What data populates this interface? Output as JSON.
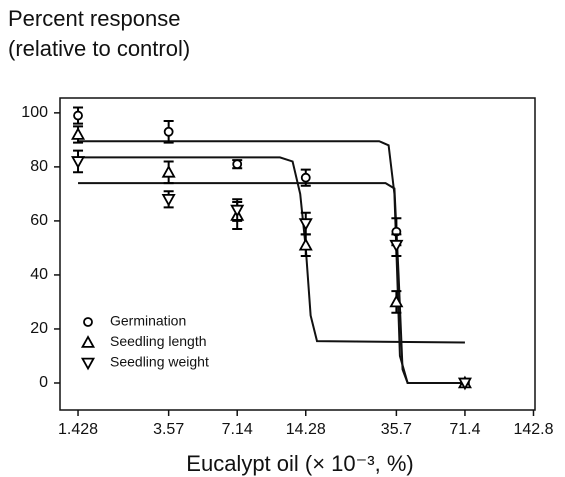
{
  "chart_data": {
    "type": "scatter",
    "ylabel": [
      "Percent response",
      "(relative to control)"
    ],
    "xlabel": "Eucalypt oil (× 10⁻³, %)",
    "xscale": "log",
    "x": [
      1.428,
      3.57,
      7.14,
      14.28,
      35.7,
      71.4
    ],
    "series": [
      {
        "name": "Germination",
        "marker": "circle",
        "color": "#000000",
        "values": [
          99,
          93,
          81,
          76,
          56,
          0
        ],
        "errors": [
          3,
          4,
          1.5,
          3,
          5,
          0
        ]
      },
      {
        "name": "Seedling length",
        "marker": "triangle-up",
        "color": "#000000",
        "values": [
          92,
          78,
          62,
          51,
          30,
          0
        ],
        "errors": [
          3,
          4,
          5,
          4,
          4,
          0
        ]
      },
      {
        "name": "Seedling weight",
        "marker": "triangle-down",
        "color": "#000000",
        "values": [
          82,
          68,
          64,
          59,
          51,
          0
        ],
        "errors": [
          4,
          3,
          4,
          4,
          4,
          0
        ]
      }
    ],
    "fit_lines": [
      {
        "x": [
          1.428,
          30,
          33,
          35,
          36,
          37,
          40,
          71.4
        ],
        "y": [
          89.5,
          89.5,
          88,
          70,
          40,
          10,
          0,
          0
        ]
      },
      {
        "x": [
          1.428,
          11,
          12.5,
          13.5,
          14.28,
          15,
          16,
          71.4
        ],
        "y": [
          83.5,
          83.5,
          82,
          70,
          50,
          25,
          15.5,
          15
        ]
      },
      {
        "x": [
          1.428,
          32,
          35,
          36.5,
          38,
          40,
          71.4
        ],
        "y": [
          74,
          74,
          72,
          40,
          5,
          0,
          0
        ]
      }
    ],
    "xlim": [
      1.19,
      145
    ],
    "xticks": [
      1.428,
      3.57,
      7.14,
      14.28,
      35.7,
      71.4,
      142.8
    ],
    "ylim": [
      -10,
      105.5
    ],
    "yticks": [
      0,
      20,
      40,
      60,
      80,
      100
    ],
    "legend": "lower left"
  }
}
